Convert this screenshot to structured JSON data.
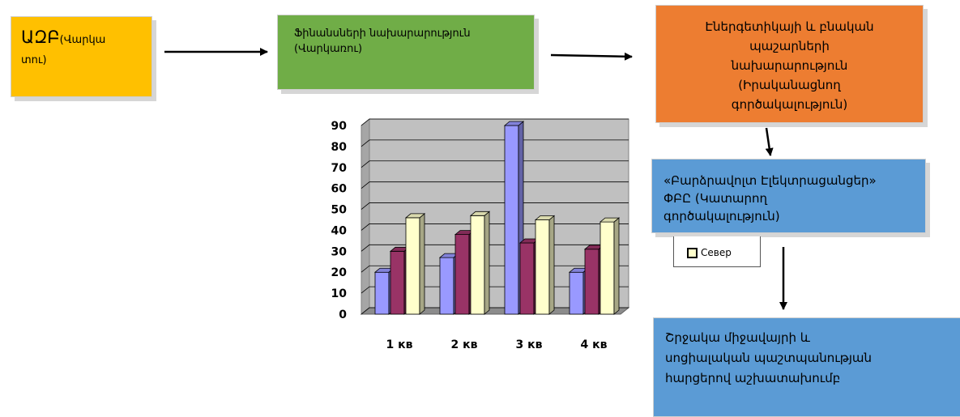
{
  "boxes": {
    "adb": {
      "title": "ԱԶԲ",
      "subtitle_line1": "(Վարկա",
      "subtitle_line2": "տու)",
      "color": "#ffc000"
    },
    "finance": {
      "line1": "Ֆինանսների նախարարություն",
      "line2": "(Վարկառու)",
      "color": "#70ad47"
    },
    "energy": {
      "line1": "Էներգետիկայի և բնական",
      "line2": "պաշարների",
      "line3": "նախարարություն",
      "line4": "(Իրականացնող",
      "line5": "գործակալություն)",
      "color": "#ed7d31"
    },
    "epc": {
      "line1": "«Բարձրավոլտ Էլեկտրացանցեր»",
      "line2": "ՓԲԸ (Կատարող",
      "line3": "գործակալություն)",
      "color": "#5b9bd5"
    },
    "group": {
      "line1": "Շրջակա միջավայրի և",
      "line2": "սոցիալական պաշտպանության",
      "line3": "հարցերով աշխատախումբ",
      "color": "#5b9bd5"
    }
  },
  "legend": {
    "label": "Север"
  },
  "chart_data": {
    "type": "bar",
    "categories": [
      "1 кв",
      "2 кв",
      "3 кв",
      "4 кв"
    ],
    "series": [
      {
        "values": [
          20,
          27,
          90,
          20
        ],
        "color": "#9999ff"
      },
      {
        "values": [
          30,
          38,
          34,
          31
        ],
        "color": "#993366"
      },
      {
        "name": "Север",
        "values": [
          46,
          47,
          45,
          44
        ],
        "color": "#ffffcc"
      }
    ],
    "yticks": [
      0,
      10,
      20,
      30,
      40,
      50,
      60,
      70,
      80,
      90
    ],
    "ylim": [
      0,
      90
    ],
    "grid": true
  }
}
